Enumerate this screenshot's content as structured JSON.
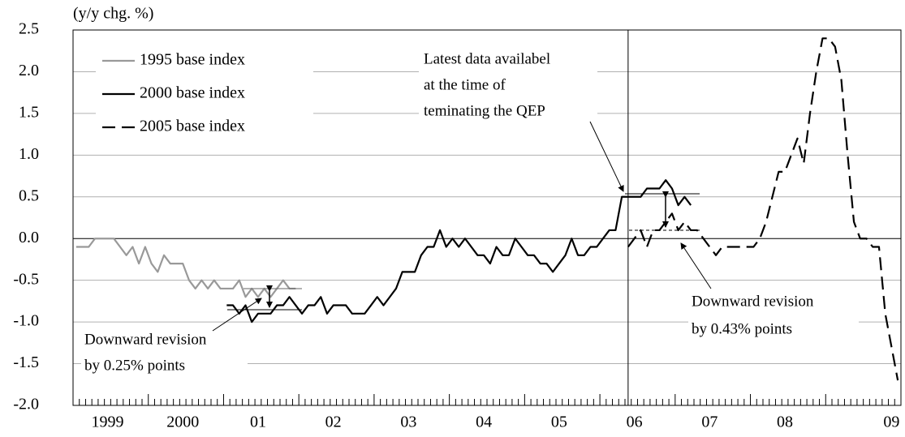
{
  "chart_data": {
    "type": "line",
    "y_label": "(y/y chg. %)",
    "ylim": [
      -2,
      2.5
    ],
    "yticks": [
      2.5,
      {
        "value": 2,
        "label": "2.0"
      },
      1.5,
      {
        "value": 1,
        "label": "1.0"
      },
      0.5,
      {
        "value": 0,
        "label": "0.0"
      },
      -0.5,
      {
        "value": -1,
        "label": "-1.0"
      },
      -1.5,
      {
        "value": -2,
        "label": "-2.0"
      }
    ],
    "grid": true,
    "zero_line": true,
    "legend": "upper left",
    "categories": [
      null,
      null,
      null,
      null,
      null,
      "1999",
      null,
      null,
      null,
      null,
      null,
      null,
      null,
      null,
      null,
      null,
      null,
      "2000",
      null,
      null,
      null,
      null,
      null,
      null,
      null,
      null,
      null,
      null,
      null,
      "01",
      null,
      null,
      null,
      null,
      null,
      null,
      null,
      null,
      null,
      null,
      null,
      "02",
      null,
      null,
      null,
      null,
      null,
      null,
      null,
      null,
      null,
      null,
      null,
      "03",
      null,
      null,
      null,
      null,
      null,
      null,
      null,
      null,
      null,
      null,
      null,
      "04",
      null,
      null,
      null,
      null,
      null,
      null,
      null,
      null,
      null,
      null,
      null,
      "05",
      null,
      null,
      null,
      null,
      null,
      null,
      null,
      null,
      null,
      null,
      null,
      "06",
      null,
      null,
      null,
      null,
      null,
      null,
      null,
      null,
      null,
      null,
      null,
      "07",
      null,
      null,
      null,
      null,
      null,
      null,
      null,
      null,
      null,
      null,
      null,
      "08",
      null,
      null,
      null,
      null,
      null,
      null,
      null,
      null,
      null,
      null,
      null,
      null,
      null,
      null,
      null,
      null,
      "09",
      null
    ],
    "series": [
      {
        "name": "1995 base index",
        "color": "#999999",
        "dash": "solid",
        "values": [
          -0.1,
          -0.1,
          -0.1,
          0.0,
          0.0,
          0.0,
          0.0,
          -0.1,
          -0.2,
          -0.1,
          -0.3,
          -0.1,
          -0.3,
          -0.4,
          -0.2,
          -0.3,
          -0.3,
          -0.3,
          -0.5,
          -0.6,
          -0.5,
          -0.6,
          -0.5,
          -0.6,
          -0.6,
          -0.6,
          -0.5,
          -0.7,
          -0.6,
          -0.7,
          -0.6,
          -0.7,
          -0.6,
          -0.5,
          -0.6,
          -0.6,
          null,
          null,
          null,
          null,
          null,
          null,
          null,
          null,
          null,
          null,
          null,
          null,
          null,
          null,
          null,
          null,
          null,
          null,
          null,
          null,
          null,
          null,
          null,
          null,
          null,
          null,
          null,
          null,
          null,
          null,
          null,
          null,
          null,
          null,
          null,
          null,
          null,
          null,
          null,
          null,
          null,
          null,
          null,
          null,
          null,
          null,
          null,
          null,
          null,
          null,
          null,
          null,
          null,
          null,
          null,
          null,
          null,
          null,
          null,
          null,
          null,
          null,
          null,
          null,
          null,
          null,
          null,
          null,
          null,
          null,
          null,
          null,
          null,
          null,
          null,
          null,
          null,
          null,
          null,
          null,
          null,
          null,
          null,
          null,
          null,
          null,
          null,
          null,
          null,
          null,
          null,
          null,
          null,
          null,
          null,
          null
        ]
      },
      {
        "name": "2000 base index",
        "color": "#000000",
        "dash": "solid",
        "values": [
          null,
          null,
          null,
          null,
          null,
          null,
          null,
          null,
          null,
          null,
          null,
          null,
          null,
          null,
          null,
          null,
          null,
          null,
          null,
          null,
          null,
          null,
          null,
          null,
          -0.8,
          -0.8,
          -0.9,
          -0.8,
          -1.0,
          -0.9,
          -0.9,
          -0.9,
          -0.8,
          -0.8,
          -0.7,
          -0.8,
          -0.9,
          -0.8,
          -0.8,
          -0.7,
          -0.9,
          -0.8,
          -0.8,
          -0.8,
          -0.9,
          -0.9,
          -0.9,
          -0.8,
          -0.7,
          -0.8,
          -0.7,
          -0.6,
          -0.4,
          -0.4,
          -0.4,
          -0.2,
          -0.1,
          -0.1,
          0.1,
          -0.1,
          0.0,
          -0.1,
          0.0,
          -0.1,
          -0.2,
          -0.2,
          -0.3,
          -0.1,
          -0.2,
          -0.2,
          0.0,
          -0.1,
          -0.2,
          -0.2,
          -0.3,
          -0.3,
          -0.4,
          -0.3,
          -0.2,
          0.0,
          -0.2,
          -0.2,
          -0.1,
          -0.1,
          0.0,
          0.1,
          0.1,
          0.5,
          0.5,
          0.5,
          0.5,
          0.6,
          0.6,
          0.6,
          0.7,
          0.6,
          0.4,
          0.5,
          0.4,
          null,
          null,
          null,
          null,
          null,
          null,
          null,
          null,
          null,
          null,
          null,
          null,
          null,
          null,
          null,
          null,
          null,
          null,
          null,
          null,
          null,
          null,
          null,
          null,
          null,
          null,
          null,
          null,
          null,
          null,
          null,
          null,
          null
        ]
      },
      {
        "name": "2005 base index",
        "color": "#000000",
        "dash": "dashed",
        "values": [
          null,
          null,
          null,
          null,
          null,
          null,
          null,
          null,
          null,
          null,
          null,
          null,
          null,
          null,
          null,
          null,
          null,
          null,
          null,
          null,
          null,
          null,
          null,
          null,
          null,
          null,
          null,
          null,
          null,
          null,
          null,
          null,
          null,
          null,
          null,
          null,
          null,
          null,
          null,
          null,
          null,
          null,
          null,
          null,
          null,
          null,
          null,
          null,
          null,
          null,
          null,
          null,
          null,
          null,
          null,
          null,
          null,
          null,
          null,
          null,
          null,
          null,
          null,
          null,
          null,
          null,
          null,
          null,
          null,
          null,
          null,
          null,
          null,
          null,
          null,
          null,
          null,
          null,
          null,
          null,
          null,
          null,
          null,
          null,
          null,
          null,
          null,
          null,
          -0.1,
          0.0,
          0.1,
          -0.1,
          0.1,
          0.1,
          0.2,
          0.3,
          0.1,
          0.2,
          0.1,
          0.1,
          0.0,
          -0.1,
          -0.2,
          -0.1,
          -0.1,
          -0.1,
          -0.1,
          -0.1,
          -0.1,
          0.0,
          0.2,
          0.5,
          0.8,
          0.8,
          1.0,
          1.2,
          0.9,
          1.5,
          2.0,
          2.4,
          2.4,
          2.3,
          1.9,
          1.0,
          0.2,
          0.0,
          0.0,
          -0.1,
          -0.1,
          -0.9,
          -1.3,
          -1.7
        ]
      }
    ],
    "annotations": [
      [
        "Latest data availabel",
        "at the time of",
        "teminating the QEP"
      ],
      [
        "Downward revision",
        "by 0.43% points"
      ],
      [
        "Downward revision",
        "by 0.25% points"
      ]
    ]
  }
}
